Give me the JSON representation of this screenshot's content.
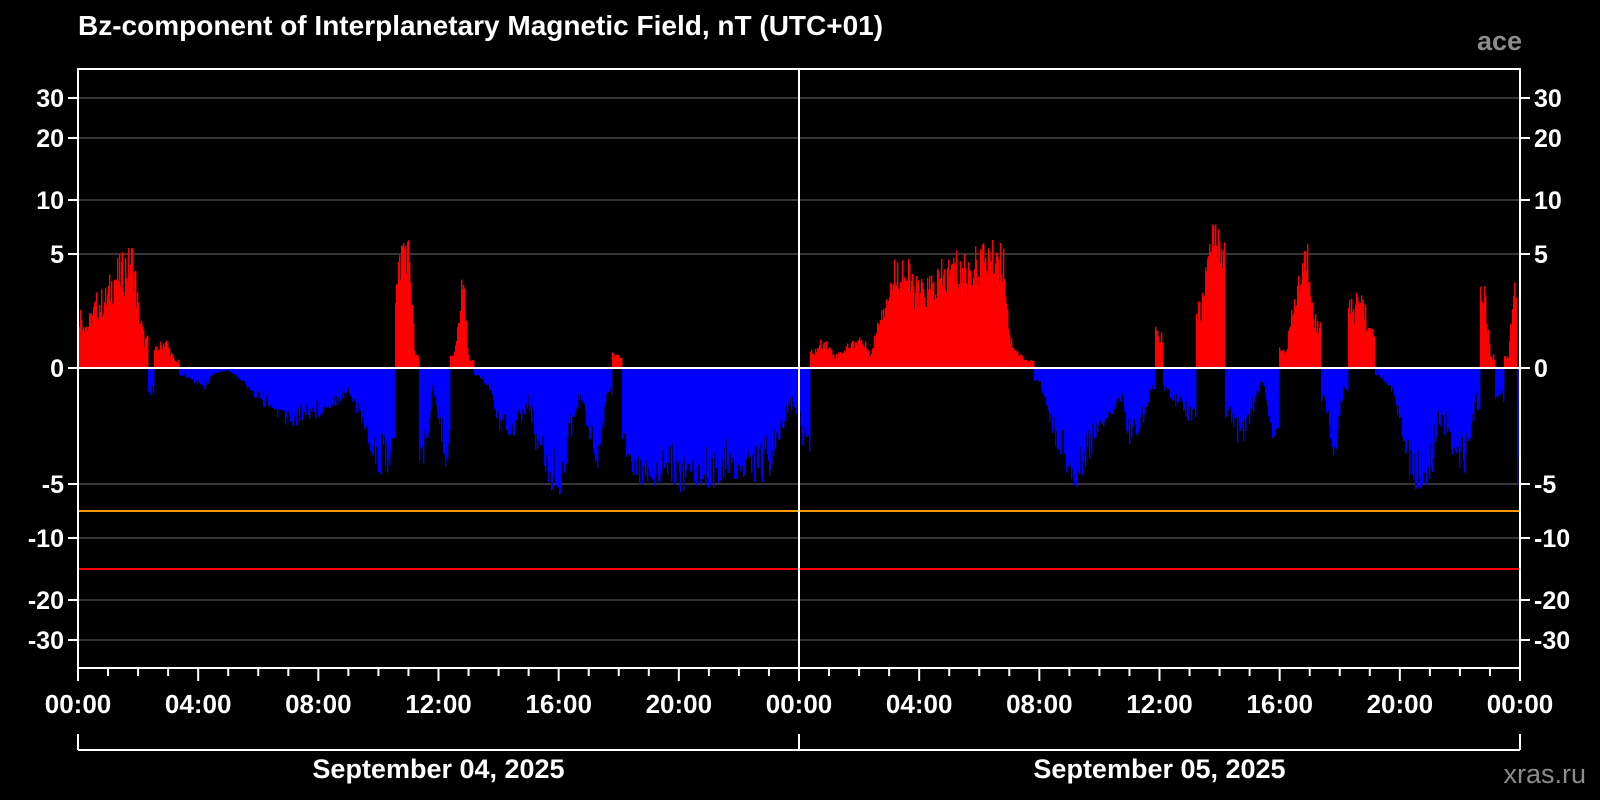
{
  "chart_data": {
    "type": "bar",
    "title": "Bz-component of Interplanetary Magnetic Field, nT (UTC+01)",
    "source_label": "ace",
    "watermark": "xras.ru",
    "y_ticks": [
      30,
      20,
      10,
      5,
      0,
      -5,
      -10,
      -20,
      -30
    ],
    "y_tick_labels": [
      "30",
      "20",
      "10",
      "5",
      "0",
      "-5",
      "-10",
      "-20",
      "-30"
    ],
    "x_tick_labels": [
      "00:00",
      "04:00",
      "08:00",
      "12:00",
      "16:00",
      "20:00",
      "00:00",
      "04:00",
      "08:00",
      "12:00",
      "16:00",
      "20:00",
      "00:00"
    ],
    "x_range_hours": [
      0,
      48
    ],
    "date_labels": [
      "September 04, 2025",
      "September 05, 2025"
    ],
    "thresholds": [
      {
        "value": -7.5,
        "color": "#ff9900"
      },
      {
        "value": -15,
        "color": "#ff0000"
      }
    ],
    "positive_color": "#ff0000",
    "negative_color": "#0000ff",
    "series_anchors": [
      [
        0.0,
        2.5
      ],
      [
        0.3,
        1.8
      ],
      [
        0.6,
        2.8
      ],
      [
        0.9,
        3.0
      ],
      [
        1.2,
        4.0
      ],
      [
        1.5,
        4.3
      ],
      [
        1.8,
        5.0
      ],
      [
        2.0,
        2.5
      ],
      [
        2.2,
        1.2
      ],
      [
        2.4,
        -1.0
      ],
      [
        2.6,
        0.8
      ],
      [
        2.9,
        1.2
      ],
      [
        3.2,
        0.3
      ],
      [
        3.5,
        -0.3
      ],
      [
        3.8,
        -0.5
      ],
      [
        4.2,
        -0.8
      ],
      [
        4.5,
        -0.2
      ],
      [
        5.0,
        -0.1
      ],
      [
        5.5,
        -0.6
      ],
      [
        6.0,
        -1.2
      ],
      [
        6.5,
        -1.8
      ],
      [
        7.0,
        -2.2
      ],
      [
        7.5,
        -1.9
      ],
      [
        8.0,
        -1.8
      ],
      [
        8.5,
        -1.4
      ],
      [
        9.0,
        -1.0
      ],
      [
        9.5,
        -2.3
      ],
      [
        10.0,
        -3.9
      ],
      [
        10.5,
        -3.6
      ],
      [
        10.6,
        3.5
      ],
      [
        10.8,
        5.9
      ],
      [
        11.0,
        5.4
      ],
      [
        11.2,
        0.5
      ],
      [
        11.5,
        -3.8
      ],
      [
        11.8,
        -0.8
      ],
      [
        12.2,
        -3.5
      ],
      [
        12.5,
        0.5
      ],
      [
        12.8,
        3.8
      ],
      [
        13.0,
        0.3
      ],
      [
        13.3,
        -0.3
      ],
      [
        13.7,
        -0.8
      ],
      [
        14.0,
        -2.2
      ],
      [
        14.5,
        -2.5
      ],
      [
        15.0,
        -1.5
      ],
      [
        15.3,
        -3.5
      ],
      [
        15.7,
        -4.5
      ],
      [
        16.0,
        -5.2
      ],
      [
        16.3,
        -3.0
      ],
      [
        16.7,
        -1.2
      ],
      [
        17.0,
        -2.5
      ],
      [
        17.3,
        -3.8
      ],
      [
        17.6,
        -1.0
      ],
      [
        17.9,
        0.6
      ],
      [
        18.3,
        -3.2
      ],
      [
        18.7,
        -4.6
      ],
      [
        19.2,
        -4.3
      ],
      [
        19.7,
        -4.0
      ],
      [
        20.1,
        -4.9
      ],
      [
        20.6,
        -4.2
      ],
      [
        21.1,
        -4.5
      ],
      [
        21.6,
        -4.1
      ],
      [
        22.1,
        -4.0
      ],
      [
        22.6,
        -4.2
      ],
      [
        23.1,
        -3.8
      ],
      [
        23.5,
        -2.5
      ],
      [
        23.8,
        -1.2
      ],
      [
        24.0,
        -2.5
      ],
      [
        24.2,
        -3.0
      ],
      [
        24.5,
        0.7
      ],
      [
        24.8,
        1.2
      ],
      [
        25.2,
        0.5
      ],
      [
        25.6,
        0.9
      ],
      [
        26.0,
        1.3
      ],
      [
        26.4,
        0.6
      ],
      [
        26.7,
        2.5
      ],
      [
        27.0,
        3.5
      ],
      [
        27.3,
        4.5
      ],
      [
        27.6,
        4.0
      ],
      [
        28.0,
        3.2
      ],
      [
        28.4,
        3.6
      ],
      [
        28.8,
        4.0
      ],
      [
        29.2,
        4.5
      ],
      [
        29.6,
        4.2
      ],
      [
        30.0,
        5.0
      ],
      [
        30.4,
        5.2
      ],
      [
        30.8,
        5.0
      ],
      [
        31.0,
        1.3
      ],
      [
        31.3,
        0.6
      ],
      [
        31.6,
        0.3
      ],
      [
        32.0,
        -0.5
      ],
      [
        32.4,
        -2.5
      ],
      [
        32.8,
        -3.5
      ],
      [
        33.1,
        -4.5
      ],
      [
        33.5,
        -3.8
      ],
      [
        33.9,
        -2.5
      ],
      [
        34.3,
        -1.8
      ],
      [
        34.7,
        -1.2
      ],
      [
        35.0,
        -3.0
      ],
      [
        35.3,
        -2.5
      ],
      [
        35.7,
        -1.0
      ],
      [
        36.0,
        1.5
      ],
      [
        36.2,
        -0.8
      ],
      [
        36.6,
        -1.5
      ],
      [
        37.0,
        -2.0
      ],
      [
        37.4,
        2.5
      ],
      [
        37.7,
        6.8
      ],
      [
        38.0,
        6.0
      ],
      [
        38.3,
        -1.8
      ],
      [
        38.7,
        -3.0
      ],
      [
        39.0,
        -2.0
      ],
      [
        39.4,
        -0.5
      ],
      [
        39.7,
        -2.5
      ],
      [
        40.2,
        0.8
      ],
      [
        40.5,
        3.0
      ],
      [
        40.9,
        5.2
      ],
      [
        41.2,
        1.8
      ],
      [
        41.5,
        -1.5
      ],
      [
        41.8,
        -3.5
      ],
      [
        42.1,
        -1.0
      ],
      [
        42.4,
        2.5
      ],
      [
        42.7,
        3.2
      ],
      [
        43.0,
        1.5
      ],
      [
        43.3,
        -0.3
      ],
      [
        43.8,
        -1.0
      ],
      [
        44.2,
        -3.5
      ],
      [
        44.6,
        -4.8
      ],
      [
        45.0,
        -4.5
      ],
      [
        45.3,
        -2.0
      ],
      [
        45.7,
        -3.0
      ],
      [
        46.1,
        -4.0
      ],
      [
        46.5,
        -1.5
      ],
      [
        46.8,
        3.5
      ],
      [
        47.0,
        0.5
      ],
      [
        47.3,
        -1.2
      ],
      [
        47.6,
        0.5
      ],
      [
        47.8,
        4.2
      ],
      [
        48.0,
        -4.5
      ]
    ]
  }
}
